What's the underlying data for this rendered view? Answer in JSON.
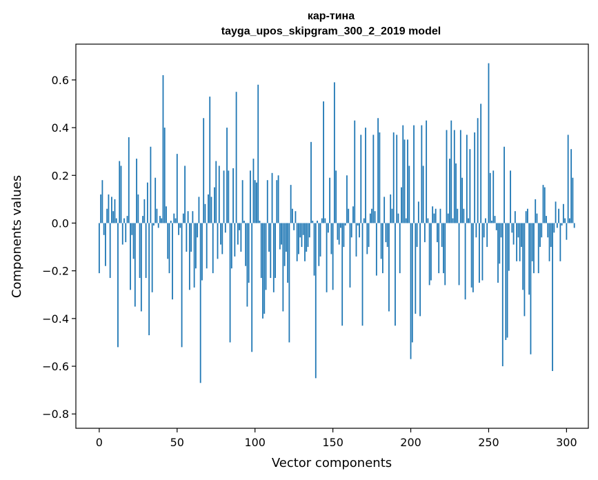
{
  "chart_data": {
    "type": "bar",
    "title_line1": "кар-тина",
    "title_line2": "tayga_upos_skipgram_300_2_2019 model",
    "xlabel": "Vector components",
    "ylabel": "Components values",
    "xlim": [
      -15,
      314
    ],
    "ylim": [
      -0.86,
      0.75
    ],
    "xticks": [
      0,
      50,
      100,
      150,
      200,
      250,
      300
    ],
    "yticks": [
      -0.8,
      -0.6,
      -0.4,
      -0.2,
      0.0,
      0.2,
      0.4,
      0.6
    ],
    "ytick_labels": [
      "−0.8",
      "−0.6",
      "−0.4",
      "−0.2",
      "0.0",
      "0.2",
      "0.4",
      "0.6"
    ],
    "bar_color": "#1f77b4",
    "series": [
      {
        "name": "components",
        "values": [
          -0.21,
          0.12,
          0.18,
          -0.05,
          -0.18,
          0.06,
          0.12,
          -0.23,
          0.11,
          0.05,
          0.1,
          0.02,
          -0.52,
          0.26,
          0.24,
          -0.09,
          0.02,
          -0.08,
          0.03,
          0.36,
          -0.28,
          -0.05,
          -0.15,
          -0.35,
          0.27,
          0.12,
          -0.23,
          -0.37,
          0.03,
          0.1,
          -0.23,
          0.17,
          -0.47,
          0.32,
          -0.29,
          -0.01,
          0.19,
          0.06,
          -0.02,
          0.03,
          0.02,
          0.62,
          0.4,
          0.07,
          -0.15,
          -0.21,
          0.01,
          -0.32,
          0.04,
          0.02,
          0.29,
          -0.05,
          -0.02,
          -0.52,
          0.04,
          0.24,
          -0.12,
          0.05,
          -0.28,
          -0.12,
          0.05,
          -0.27,
          -0.19,
          -0.06,
          0.11,
          -0.67,
          -0.24,
          0.44,
          0.08,
          -0.19,
          0.12,
          0.53,
          0.11,
          -0.21,
          0.15,
          0.26,
          -0.15,
          0.24,
          -0.09,
          -0.13,
          0.22,
          -0.04,
          0.4,
          0.22,
          -0.5,
          -0.19,
          0.23,
          -0.14,
          0.55,
          -0.09,
          -0.03,
          -0.12,
          0.18,
          0.01,
          -0.18,
          -0.35,
          -0.25,
          0.22,
          -0.54,
          0.27,
          0.18,
          0.17,
          0.58,
          0.01,
          -0.23,
          -0.4,
          -0.38,
          -0.28,
          0.18,
          -0.12,
          -0.23,
          0.21,
          -0.29,
          -0.23,
          0.18,
          0.2,
          -0.11,
          -0.09,
          -0.37,
          -0.18,
          -0.12,
          -0.25,
          -0.5,
          0.16,
          0.06,
          -0.03,
          0.05,
          -0.16,
          -0.13,
          -0.06,
          -0.1,
          -0.05,
          -0.16,
          -0.12,
          -0.1,
          -0.06,
          0.34,
          0.01,
          -0.22,
          -0.65,
          0.01,
          -0.18,
          -0.14,
          0.02,
          0.51,
          0.02,
          -0.29,
          -0.04,
          0.19,
          -0.13,
          -0.28,
          0.59,
          0.22,
          -0.07,
          -0.09,
          -0.02,
          -0.43,
          -0.1,
          -0.01,
          0.2,
          0.06,
          -0.27,
          -0.06,
          0.07,
          0.43,
          -0.14,
          -0.01,
          -0.06,
          0.37,
          -0.43,
          0.02,
          0.4,
          -0.13,
          -0.1,
          0.04,
          0.06,
          0.37,
          0.05,
          -0.22,
          0.44,
          0.38,
          -0.15,
          -0.21,
          0.11,
          -0.08,
          -0.1,
          -0.37,
          0.12,
          0.06,
          0.38,
          -0.43,
          0.37,
          0.04,
          -0.21,
          0.15,
          0.41,
          0.35,
          0.02,
          0.35,
          0.24,
          -0.57,
          -0.5,
          0.41,
          -0.38,
          -0.1,
          0.09,
          -0.39,
          0.41,
          0.24,
          -0.08,
          0.43,
          0.02,
          -0.26,
          -0.24,
          0.07,
          0.04,
          0.06,
          -0.08,
          -0.21,
          0.06,
          -0.1,
          -0.21,
          -0.26,
          0.39,
          0.04,
          0.27,
          0.43,
          0.02,
          0.39,
          0.25,
          0.06,
          -0.26,
          0.39,
          0.19,
          0.06,
          -0.32,
          0.37,
          0.02,
          0.31,
          -0.27,
          -0.29,
          0.38,
          -0.06,
          0.44,
          -0.25,
          0.5,
          -0.24,
          -0.06,
          0.02,
          -0.1,
          0.67,
          0.21,
          0.01,
          0.22,
          0.03,
          -0.03,
          -0.25,
          -0.17,
          -0.06,
          -0.6,
          0.32,
          -0.49,
          -0.48,
          -0.2,
          0.22,
          -0.04,
          -0.09,
          0.05,
          -0.16,
          -0.06,
          -0.16,
          -0.1,
          -0.28,
          -0.39,
          0.05,
          0.06,
          -0.3,
          -0.55,
          -0.16,
          -0.21,
          0.1,
          0.04,
          -0.21,
          -0.1,
          -0.06,
          0.16,
          0.15,
          0.03,
          -0.06,
          -0.16,
          -0.1,
          -0.62,
          -0.04,
          0.09,
          -0.02,
          0.06,
          -0.16,
          -0.01,
          0.08,
          0.02,
          -0.07,
          0.37,
          0.02,
          0.31,
          0.19,
          -0.02
        ]
      }
    ]
  }
}
